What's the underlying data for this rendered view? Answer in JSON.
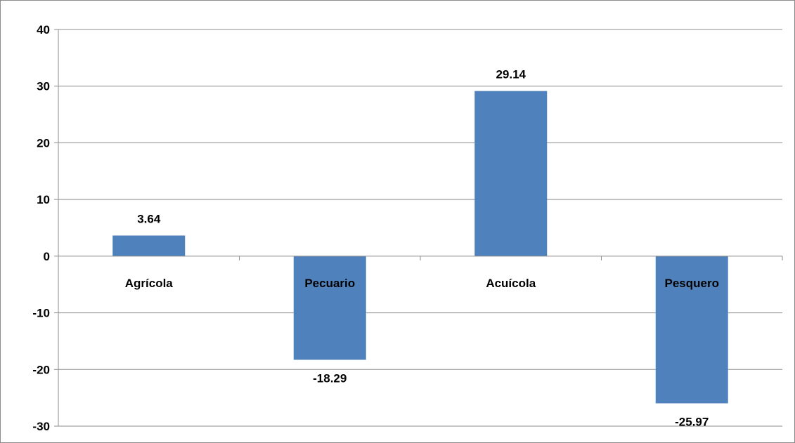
{
  "chart_data": {
    "type": "bar",
    "title": "",
    "xlabel": "",
    "ylabel": "",
    "categories": [
      "Agrícola",
      "Pecuario",
      "Acuícola",
      "Pesquero"
    ],
    "values": [
      3.64,
      -18.29,
      29.14,
      -25.97
    ],
    "data_labels": [
      "3.64",
      "-18.29",
      "29.14",
      "-25.97"
    ],
    "ylim": [
      -30,
      40
    ],
    "yticks": [
      40,
      30,
      20,
      10,
      0,
      -10,
      -20,
      -30
    ],
    "ytick_labels": [
      "40",
      "30",
      "20",
      "10",
      "0",
      "-10",
      "-20",
      "-30"
    ],
    "grid": true,
    "legend": "none",
    "bar_color": "#4f81bd",
    "gridline_color": "#8c8c8c"
  }
}
